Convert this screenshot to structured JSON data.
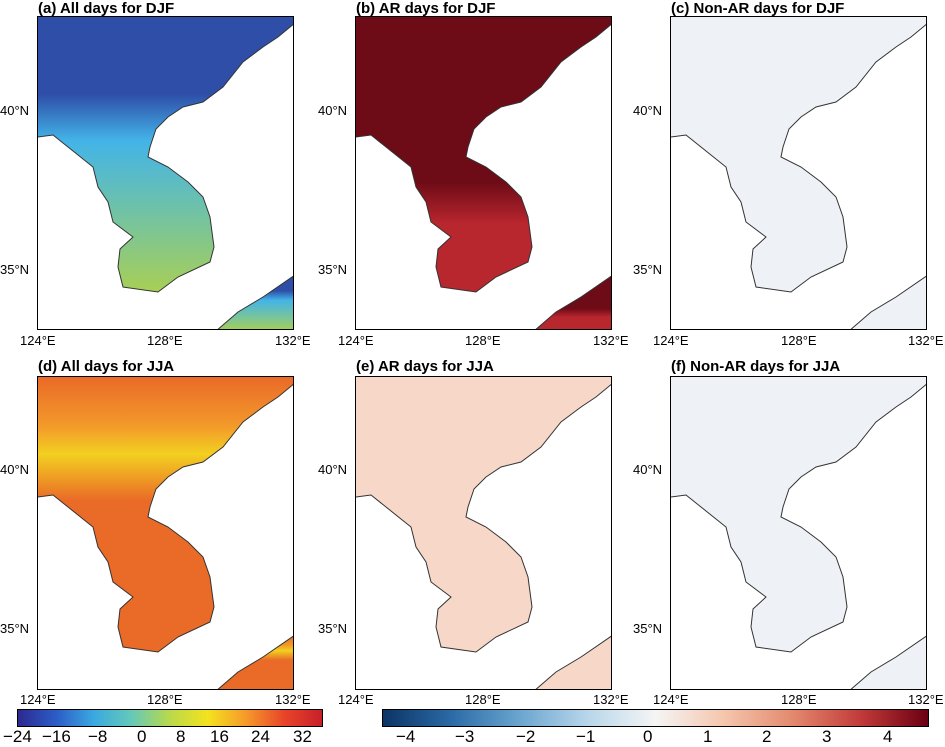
{
  "panels": [
    {
      "id": "a",
      "title": "(a) All days for DJF",
      "scale": "temp",
      "pattern": "djf"
    },
    {
      "id": "b",
      "title": "(b) AR days for DJF",
      "scale": "anom",
      "pattern": "ar_djf"
    },
    {
      "id": "c",
      "title": "(c) Non-AR days for DJF",
      "scale": "anom",
      "pattern": "nonar"
    },
    {
      "id": "d",
      "title": "(d) All days for JJA",
      "scale": "temp",
      "pattern": "jja"
    },
    {
      "id": "e",
      "title": "(e) AR days for JJA",
      "scale": "anom",
      "pattern": "ar_jja"
    },
    {
      "id": "f",
      "title": "(f) Non-AR days for JJA",
      "scale": "anom",
      "pattern": "nonar"
    }
  ],
  "lat_labels": [
    "40°N",
    "35°N"
  ],
  "lon_labels": [
    "124°E",
    "128°E",
    "132°E"
  ],
  "colorbars": [
    {
      "name": "temperature",
      "ticks": [
        "−24",
        "−16",
        "−8",
        "0",
        "8",
        "16",
        "24",
        "32"
      ],
      "colors": [
        "#2c2a8f",
        "#2c5cc6",
        "#3aa9e0",
        "#66c9b8",
        "#b9d94a",
        "#f4e21e",
        "#f59a2a",
        "#e8452a",
        "#c8202a"
      ]
    },
    {
      "name": "anomaly",
      "ticks": [
        "−4",
        "−3",
        "−2",
        "−1",
        "0",
        "1",
        "2",
        "3",
        "4"
      ],
      "colors": [
        "#0c3466",
        "#2b6aa6",
        "#6aa5cf",
        "#b8d6ea",
        "#f5f5f5",
        "#f5c6ae",
        "#e38a6e",
        "#c33b3b",
        "#6a0011"
      ]
    }
  ],
  "colors": {
    "djf_deep": "#2e4ea8",
    "djf_mid": "#43b4e8",
    "djf_south": "#6fc2a8",
    "djf_tip": "#a8cf55",
    "ar_djf_north": "#6d0b16",
    "ar_djf_south": "#b8262e",
    "jja_base": "#ea6a28",
    "jja_hot": "#f2d020",
    "jja_orange": "#f39a2a",
    "ar_jja": "#f6d7c8",
    "nonar": "#eef2f6",
    "coast": "#333333",
    "land_ocean": "#ffffff"
  }
}
